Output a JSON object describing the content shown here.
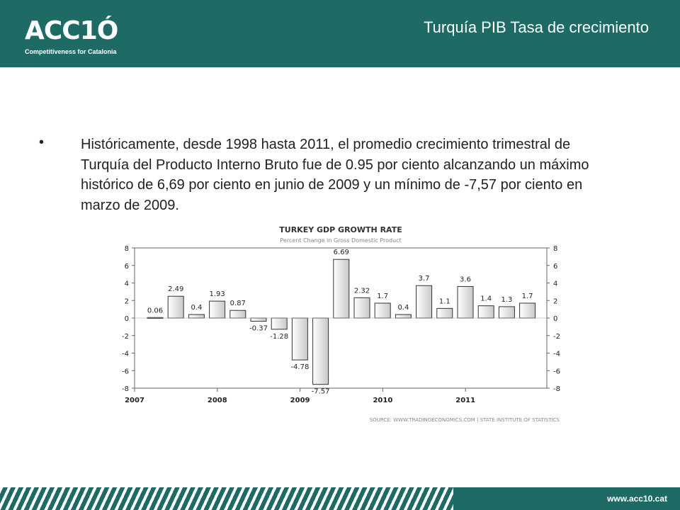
{
  "header": {
    "logo_text": "ACC1Ó",
    "logo_tagline": "Competitiveness for Catalonia",
    "title": "Turquía PIB Tasa de crecimiento"
  },
  "content": {
    "bullet": "•",
    "paragraph": "Históricamente, desde 1998 hasta 2011, el promedio crecimiento trimestral de Turquía  del Producto Interno Bruto fue de 0.95 por ciento alcanzando un máximo histórico de 6,69 por ciento en junio de 2009 y un mínimo de -7,57 por ciento en marzo de 2009."
  },
  "footer": {
    "url": "www.acc10.cat"
  },
  "colors": {
    "brand": "#1e6b66",
    "bar_fill_light": "#ffffff",
    "bar_fill_dark": "#c8c8c8",
    "bar_stroke": "#333333"
  },
  "chart_data": {
    "type": "bar",
    "title": "TURKEY GDP GROWTH RATE",
    "subtitle": "Percent Change in Gross Domestic Product",
    "source": "SOURCE: WWW.TRADINGECONOMICS.COM  |  STATE INSTITUTE OF STATISTICS",
    "x_ticks": [
      "2007",
      "2008",
      "2009",
      "2010",
      "2011"
    ],
    "ylim": [
      -8,
      8
    ],
    "y_ticks": [
      8,
      6,
      4,
      2,
      0,
      -2,
      -4,
      -6,
      -8
    ],
    "grid": false,
    "values": [
      0.06,
      2.49,
      0.4,
      1.93,
      0.87,
      -0.37,
      -1.28,
      -4.78,
      -7.57,
      6.69,
      2.32,
      1.7,
      0.4,
      3.7,
      1.1,
      3.6,
      1.4,
      1.3,
      1.7
    ],
    "labels": [
      "0.06",
      "2.49",
      "0.4",
      "1.93",
      "0.87",
      "-0.37",
      "-1.28",
      "-4.78",
      "-7.57",
      "6.69",
      "2.32",
      "1.7",
      "0.4",
      "3.7",
      "1.1",
      "3.6",
      "1.4",
      "1.3",
      "1.7"
    ]
  }
}
